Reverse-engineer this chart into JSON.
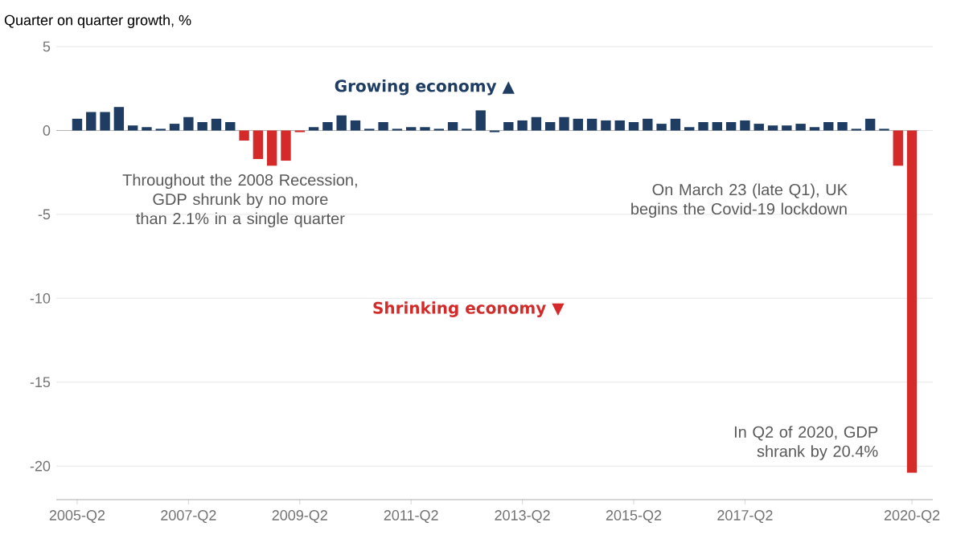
{
  "chart_data": {
    "type": "bar",
    "ylabel": "Quarter on quarter growth, %",
    "categories": [
      "2005-Q2",
      null,
      null,
      null,
      null,
      null,
      null,
      null,
      "2007-Q2",
      null,
      null,
      null,
      null,
      null,
      null,
      null,
      "2009-Q2",
      null,
      null,
      null,
      null,
      null,
      null,
      null,
      "2011-Q2",
      null,
      null,
      null,
      null,
      null,
      null,
      null,
      "2013-Q2",
      null,
      null,
      null,
      null,
      null,
      null,
      null,
      "2015-Q2",
      null,
      null,
      null,
      null,
      null,
      null,
      null,
      "2017-Q2",
      null,
      null,
      null,
      null,
      null,
      null,
      null,
      null,
      null,
      null,
      null,
      "2020-Q2"
    ],
    "values": [
      0.7,
      1.1,
      1.1,
      1.4,
      0.3,
      0.2,
      0.1,
      0.4,
      0.8,
      0.5,
      0.7,
      0.5,
      -0.6,
      -1.7,
      -2.1,
      -1.8,
      -0.1,
      0.2,
      0.5,
      0.9,
      0.6,
      0.1,
      0.5,
      0.1,
      0.2,
      0.2,
      0.1,
      0.5,
      0.1,
      1.2,
      -0.1,
      0.5,
      0.6,
      0.8,
      0.5,
      0.8,
      0.7,
      0.7,
      0.6,
      0.6,
      0.5,
      0.7,
      0.4,
      0.7,
      0.2,
      0.5,
      0.5,
      0.5,
      0.6,
      0.4,
      0.3,
      0.3,
      0.4,
      0.2,
      0.5,
      0.5,
      0.1,
      0.7,
      0.1,
      -2.1,
      -20.4
    ],
    "colors": [
      "#1f3d63",
      "#1f3d63",
      "#1f3d63",
      "#1f3d63",
      "#1f3d63",
      "#1f3d63",
      "#1f3d63",
      "#1f3d63",
      "#1f3d63",
      "#1f3d63",
      "#1f3d63",
      "#1f3d63",
      "#d42a2a",
      "#d42a2a",
      "#d42a2a",
      "#d42a2a",
      "#d42a2a",
      "#1f3d63",
      "#1f3d63",
      "#1f3d63",
      "#1f3d63",
      "#1f3d63",
      "#1f3d63",
      "#1f3d63",
      "#1f3d63",
      "#1f3d63",
      "#1f3d63",
      "#1f3d63",
      "#1f3d63",
      "#1f3d63",
      "#1f3d63",
      "#1f3d63",
      "#1f3d63",
      "#1f3d63",
      "#1f3d63",
      "#1f3d63",
      "#1f3d63",
      "#1f3d63",
      "#1f3d63",
      "#1f3d63",
      "#1f3d63",
      "#1f3d63",
      "#1f3d63",
      "#1f3d63",
      "#1f3d63",
      "#1f3d63",
      "#1f3d63",
      "#1f3d63",
      "#1f3d63",
      "#1f3d63",
      "#1f3d63",
      "#1f3d63",
      "#1f3d63",
      "#1f3d63",
      "#1f3d63",
      "#1f3d63",
      "#1f3d63",
      "#1f3d63",
      "#1f3d63",
      "#d42a2a",
      "#d42a2a"
    ],
    "ylim": [
      -22,
      5
    ],
    "yticks": [
      -20,
      -15,
      -10,
      -5,
      0,
      5
    ],
    "grid": "y",
    "annotations": [
      "Growing economy ▲",
      "Throughout the 2008 Recession, GDP shrunk by no more than 2.1% in a single quarter",
      "Shrinking economy ▼",
      "On March 23 (late Q1), UK begins the Covid-19 lockdown",
      "In Q2 of 2020, GDP shrank by 20.4%"
    ]
  }
}
